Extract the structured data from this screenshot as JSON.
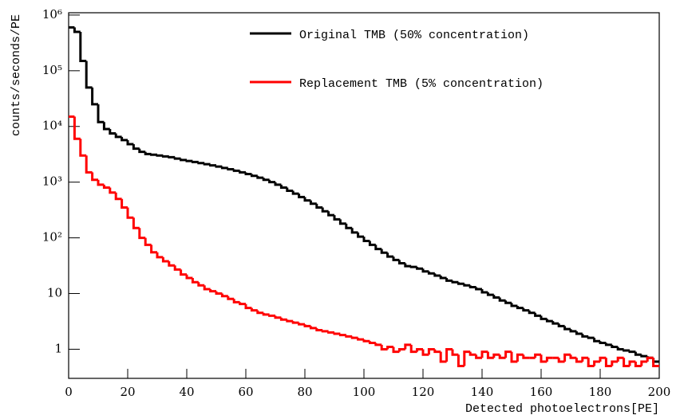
{
  "chart_data": {
    "type": "histogram",
    "xlabel": "Detected photoelectrons[PE]",
    "ylabel": "counts/seconds/PE",
    "log_y": true,
    "legend": "upper right",
    "xlim": [
      0,
      200
    ],
    "xticks": [
      0,
      20,
      40,
      60,
      80,
      100,
      120,
      140,
      160,
      180,
      200
    ],
    "ylim": [
      0.3,
      1100000
    ],
    "yticks": [
      1,
      10,
      {
        "value": 100,
        "label": "10²"
      },
      {
        "value": 1000,
        "label": "10³"
      },
      {
        "value": 10000,
        "label": "10⁴"
      },
      {
        "value": 100000,
        "label": "10⁵"
      },
      {
        "value": 1000000,
        "label": "10⁶"
      }
    ],
    "bins": [
      0,
      2,
      4,
      6,
      8,
      10,
      12,
      14,
      16,
      18,
      20,
      22,
      24,
      26,
      28,
      30,
      32,
      34,
      36,
      38,
      40,
      42,
      44,
      46,
      48,
      50,
      52,
      54,
      56,
      58,
      60,
      62,
      64,
      66,
      68,
      70,
      72,
      74,
      76,
      78,
      80,
      82,
      84,
      86,
      88,
      90,
      92,
      94,
      96,
      98,
      100,
      102,
      104,
      106,
      108,
      110,
      112,
      114,
      116,
      118,
      120,
      122,
      124,
      126,
      128,
      130,
      132,
      134,
      136,
      138,
      140,
      142,
      144,
      146,
      148,
      150,
      152,
      154,
      156,
      158,
      160,
      162,
      164,
      166,
      168,
      170,
      172,
      174,
      176,
      178,
      180,
      182,
      184,
      186,
      188,
      190,
      192,
      194,
      196,
      198,
      200
    ],
    "series": [
      {
        "name": "Original TMB (50% concentration)",
        "color": "#000000",
        "values": [
          600000,
          500000,
          150000,
          50000,
          25000,
          12000,
          9000,
          7500,
          6500,
          5700,
          4800,
          4000,
          3500,
          3200,
          3100,
          3000,
          2900,
          2800,
          2650,
          2500,
          2400,
          2300,
          2200,
          2100,
          2000,
          1900,
          1800,
          1700,
          1600,
          1500,
          1400,
          1300,
          1200,
          1100,
          1000,
          900,
          800,
          700,
          620,
          540,
          470,
          410,
          350,
          300,
          255,
          215,
          180,
          150,
          125,
          105,
          88,
          75,
          63,
          54,
          46,
          40,
          35,
          31,
          30,
          28,
          25,
          23,
          21,
          19,
          17,
          16,
          15,
          14,
          13,
          12,
          10.5,
          9.5,
          8.5,
          7.5,
          6.8,
          6,
          5.5,
          5,
          4.5,
          4,
          3.5,
          3.2,
          2.9,
          2.6,
          2.3,
          2.1,
          1.9,
          1.7,
          1.6,
          1.4,
          1.3,
          1.2,
          1.1,
          1.0,
          0.95,
          0.9,
          0.8,
          0.75,
          0.7,
          0.6
        ]
      },
      {
        "name": "Replacement TMB (5% concentration)",
        "color": "#ff0000",
        "values": [
          15000,
          6000,
          3000,
          1500,
          1100,
          900,
          800,
          650,
          500,
          350,
          230,
          150,
          100,
          75,
          55,
          45,
          38,
          32,
          27,
          22,
          19,
          16,
          14,
          12,
          11,
          10,
          9,
          8,
          7,
          6.5,
          5.5,
          5,
          4.5,
          4.2,
          4,
          3.7,
          3.4,
          3.2,
          3,
          2.8,
          2.6,
          2.4,
          2.2,
          2.1,
          2,
          1.9,
          1.8,
          1.7,
          1.6,
          1.5,
          1.4,
          1.3,
          1.2,
          1.0,
          1.1,
          0.9,
          1.0,
          1.2,
          0.9,
          1.0,
          0.8,
          1.0,
          0.9,
          0.6,
          1.0,
          0.8,
          0.5,
          0.9,
          0.8,
          0.7,
          0.9,
          0.7,
          0.8,
          0.7,
          0.9,
          0.6,
          0.8,
          0.7,
          0.7,
          0.8,
          0.6,
          0.7,
          0.7,
          0.6,
          0.8,
          0.7,
          0.6,
          0.7,
          0.5,
          0.6,
          0.7,
          0.5,
          0.6,
          0.7,
          0.5,
          0.6,
          0.5,
          0.6,
          0.7,
          0.5
        ]
      }
    ]
  }
}
